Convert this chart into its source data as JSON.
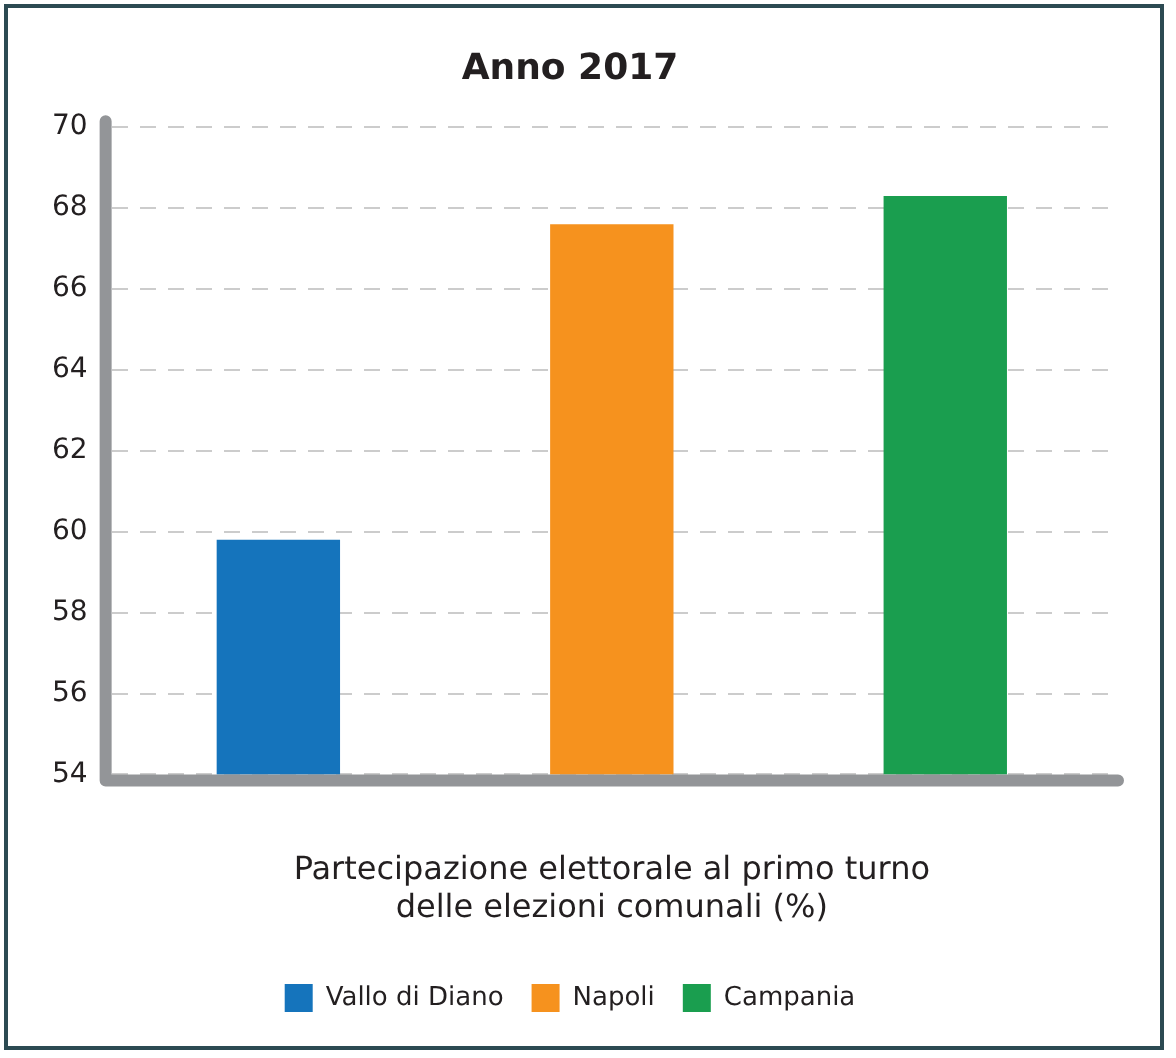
{
  "chart_data": {
    "type": "bar",
    "title": "Anno 2017",
    "xlabel": "Partecipazione elettorale al primo turno\ndelle elezioni comunali (%)",
    "categories": [
      null,
      null,
      null
    ],
    "series": [
      {
        "name": "Vallo di Diano",
        "color": "#1574bc",
        "values": [
          59.8,
          null,
          null
        ]
      },
      {
        "name": "Napoli",
        "color": "#f6921e",
        "values": [
          null,
          67.6,
          null
        ]
      },
      {
        "name": "Campania",
        "color": "#1a9e4f",
        "values": [
          null,
          null,
          68.3
        ]
      }
    ],
    "ylim": [
      54,
      70
    ],
    "yticks": [
      54,
      56,
      58,
      60,
      62,
      64,
      66,
      68,
      70
    ],
    "grid": "y",
    "legend": "bottom"
  }
}
